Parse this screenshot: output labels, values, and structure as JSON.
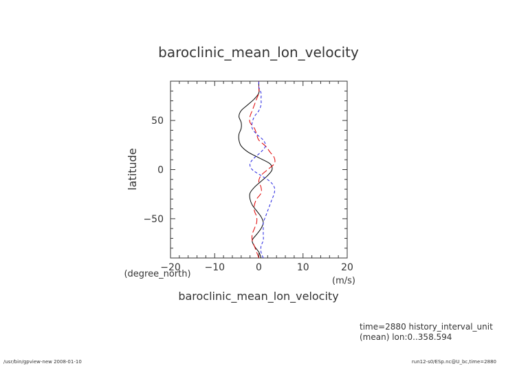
{
  "chart_data": {
    "type": "line",
    "title": "baroclinic_mean_lon_velocity",
    "xlabel": "baroclinic_mean_lon_velocity",
    "ylabel": "latitude",
    "x_unit": "(m/s)",
    "y_unit": "(degree_north)",
    "xlim": [
      -20,
      20
    ],
    "ylim": [
      -90,
      90
    ],
    "x_ticks": [
      "−20",
      "−10",
      "0",
      "10",
      "20"
    ],
    "y_ticks": [
      "−50",
      "0",
      "50"
    ],
    "x_tick_values": [
      -20,
      -10,
      0,
      10,
      20
    ],
    "y_tick_values": [
      -50,
      0,
      50
    ],
    "series": [
      {
        "color": "#000000",
        "dash": "solid",
        "lat": [
          -90,
          -84,
          -78,
          -72,
          -66,
          -60,
          -54,
          -48,
          -42,
          -36,
          -30,
          -24,
          -18,
          -12,
          -6,
          0,
          6,
          12,
          18,
          24,
          30,
          36,
          42,
          48,
          54,
          60,
          66,
          72,
          78,
          84,
          90
        ],
        "u": [
          0.5,
          0,
          -1,
          -1.5,
          -0.5,
          0.5,
          1,
          0.5,
          -0.5,
          -1.5,
          -2,
          -2,
          -1,
          0.5,
          2,
          3,
          2.5,
          0,
          -2.5,
          -4,
          -4.5,
          -4.5,
          -4,
          -4,
          -4.5,
          -4,
          -2.5,
          -1,
          0,
          0,
          0
        ]
      },
      {
        "color": "#e00000",
        "dash": "long-dash",
        "lat": [
          -90,
          -84,
          -78,
          -72,
          -66,
          -60,
          -54,
          -48,
          -42,
          -36,
          -30,
          -24,
          -18,
          -12,
          -6,
          0,
          6,
          12,
          18,
          24,
          30,
          36,
          42,
          48,
          54,
          60,
          66,
          72,
          78,
          84,
          90
        ],
        "u": [
          0,
          -0.5,
          -1,
          -1.5,
          -1.5,
          -1,
          -0.5,
          -0.5,
          -1,
          -1,
          -0.5,
          0.5,
          0.5,
          0,
          0.5,
          2,
          3.5,
          3.5,
          2.5,
          1.5,
          0,
          -0.5,
          -1,
          -2,
          -2,
          -1.5,
          -1,
          -0.5,
          0,
          0,
          0
        ]
      },
      {
        "color": "#2020e0",
        "dash": "short-dash",
        "lat": [
          -90,
          -84,
          -78,
          -72,
          -66,
          -60,
          -54,
          -48,
          -42,
          -36,
          -30,
          -24,
          -18,
          -12,
          -6,
          0,
          6,
          12,
          18,
          24,
          30,
          36,
          42,
          48,
          54,
          60,
          66,
          72,
          78,
          84,
          90
        ],
        "u": [
          1,
          0.5,
          0.5,
          1,
          1,
          1,
          1,
          1.5,
          2,
          2.5,
          3,
          3.5,
          3.5,
          2.5,
          0.5,
          -1.5,
          -2,
          -1,
          0.5,
          1.5,
          1,
          -0.5,
          -1.5,
          -1.5,
          -1,
          0,
          0.5,
          0.5,
          0.5,
          0,
          0
        ]
      }
    ],
    "grid": false
  },
  "annotations": {
    "time_info": "time=2880 history_interval_unit",
    "mean_info": "(mean) lon:0..358.594",
    "footer_left": "/usr/bin/gpview-new  2008-01-10",
    "footer_right": "run12-s0/ESp.nc@U_bc,time=2880"
  }
}
